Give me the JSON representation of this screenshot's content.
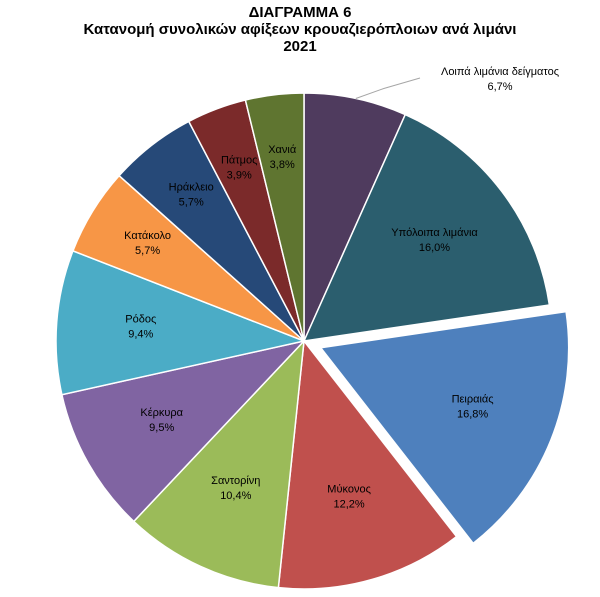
{
  "chart_data": {
    "type": "pie",
    "title_lines": [
      "ΔΙΑΓΡΑΜΜΑ 6",
      "Κατανομή συνολικών αφίξεων κρουαζιερόπλοιων ανά λιμάνι",
      "2021"
    ],
    "slices": [
      {
        "label": "Λοιπά λιμάνια δείγματος",
        "value": 6.7,
        "value_label": "6,7%",
        "color": "#4f3b5e",
        "label_color": "#000000",
        "callout": true
      },
      {
        "label": "Υπόλοιπα λιμάνια",
        "value": 16.0,
        "value_label": "16,0%",
        "color": "#2b5e6e",
        "label_color": "#000000"
      },
      {
        "label": "Πειραιάς",
        "value": 16.8,
        "value_label": "16,8%",
        "color": "#4e80bd",
        "label_color": "#000000",
        "exploded": true
      },
      {
        "label": "Μύκονος",
        "value": 12.2,
        "value_label": "12,2%",
        "color": "#c0504d",
        "label_color": "#000000"
      },
      {
        "label": "Σαντορίνη",
        "value": 10.4,
        "value_label": "10,4%",
        "color": "#9bbb59",
        "label_color": "#000000"
      },
      {
        "label": "Κέρκυρα",
        "value": 9.5,
        "value_label": "9,5%",
        "color": "#8064a2",
        "label_color": "#000000"
      },
      {
        "label": "Ρόδος",
        "value": 9.4,
        "value_label": "9,4%",
        "color": "#4bacc6",
        "label_color": "#000000"
      },
      {
        "label": "Κατάκολο",
        "value": 5.7,
        "value_label": "5,7%",
        "color": "#f79646",
        "label_color": "#000000"
      },
      {
        "label": "Ηράκλειο",
        "value": 5.7,
        "value_label": "5,7%",
        "color": "#264978",
        "label_color": "#000000"
      },
      {
        "label": "Πάτμος",
        "value": 3.9,
        "value_label": "3,9%",
        "color": "#7b2a2a",
        "label_color": "#000000"
      },
      {
        "label": "Χανιά",
        "value": 3.8,
        "value_label": "3,8%",
        "color": "#5f7530",
        "label_color": "#000000"
      }
    ]
  }
}
